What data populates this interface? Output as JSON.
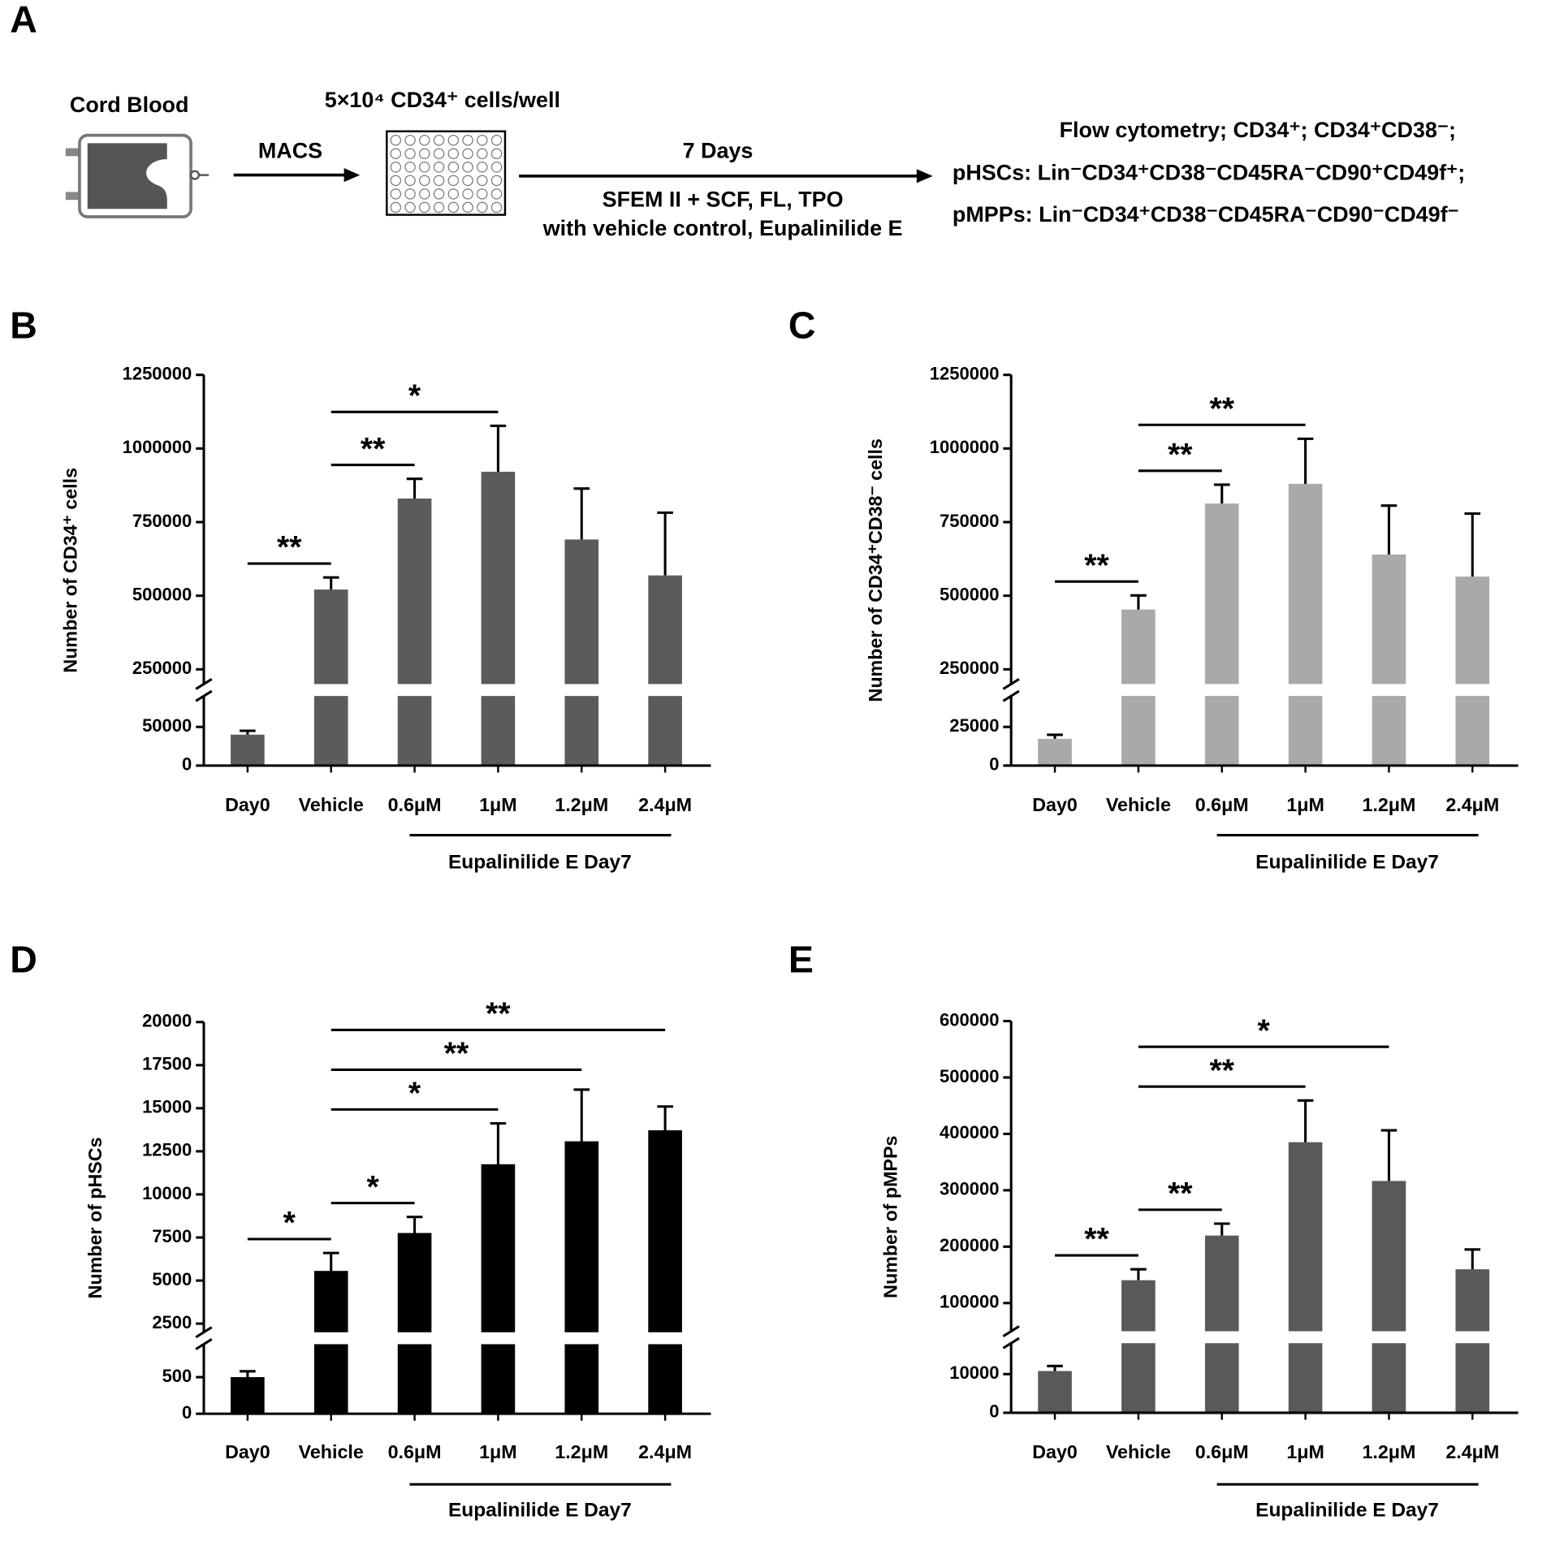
{
  "diagram": {
    "panel": "A",
    "source": "Cord Blood",
    "cells": "5×10⁴ CD34⁺ cells/well",
    "step1": "MACS",
    "step2": "7 Days",
    "medium": "SFEM II + SCF, FL, TPO",
    "treatment": "with vehicle control, Eupalinilide E",
    "readout": [
      "Flow cytometry; CD34⁺; CD34⁺CD38⁻;",
      "pHSCs: Lin⁻CD34⁺CD38⁻CD45RA⁻CD90⁺CD49f⁺;",
      "pMPPs: Lin⁻CD34⁺CD38⁻CD45RA⁻CD90⁻CD49f⁻"
    ]
  },
  "chart_data": [
    {
      "panel": "B",
      "type": "bar",
      "y_label": "Number of CD34⁺ cells",
      "categories": [
        "Day0",
        "Vehicle",
        "0.6μM",
        "1μM",
        "1.2μM",
        "2.4μM"
      ],
      "values": [
        40000,
        521000,
        830000,
        921000,
        691000,
        569000
      ],
      "errors": [
        5000,
        41000,
        67000,
        156000,
        173000,
        213000
      ],
      "color": "#5b5b5b",
      "ylim": [
        0,
        1250000
      ],
      "ybreak": [
        90000,
        200000
      ],
      "yticks": [
        0,
        50000,
        250000,
        500000,
        750000,
        1000000,
        1250000
      ],
      "comparisons": [
        {
          "from": "Day0",
          "to": "Vehicle",
          "label": "**"
        },
        {
          "from": "Vehicle",
          "to": "0.6μM",
          "label": "**"
        },
        {
          "from": "Vehicle",
          "to": "1μM",
          "label": "*"
        }
      ],
      "group": {
        "label": "Eupalinilide E Day7",
        "from": "0.6μM",
        "to": "2.4μM"
      }
    },
    {
      "panel": "C",
      "type": "bar",
      "y_label": "Number of CD34⁺CD38⁻ cells",
      "categories": [
        "Day0",
        "Vehicle",
        "0.6μM",
        "1μM",
        "1.2μM",
        "2.4μM"
      ],
      "values": [
        17300,
        453000,
        813000,
        880000,
        640000,
        565000
      ],
      "errors": [
        2600,
        48000,
        64000,
        153000,
        166000,
        214000
      ],
      "color": "#a9a9a9",
      "ylim": [
        0,
        1250000
      ],
      "ybreak": [
        45000,
        200000
      ],
      "yticks": [
        0,
        25000,
        250000,
        500000,
        750000,
        1000000,
        1250000
      ],
      "comparisons": [
        {
          "from": "Day0",
          "to": "Vehicle",
          "label": "**"
        },
        {
          "from": "Vehicle",
          "to": "0.6μM",
          "label": "**"
        },
        {
          "from": "Vehicle",
          "to": "1μM",
          "label": "**"
        }
      ],
      "group": {
        "label": "Eupalinilide E Day7",
        "from": "0.6μM",
        "to": "2.4μM"
      }
    },
    {
      "panel": "D",
      "type": "bar",
      "y_label": "Number of pHSCs",
      "categories": [
        "Day0",
        "Vehicle",
        "0.6μM",
        "1μM",
        "1.2μM",
        "2.4μM"
      ],
      "values": [
        500,
        5560,
        7760,
        11750,
        13080,
        13720
      ],
      "errors": [
        80,
        1040,
        930,
        2370,
        3000,
        1380
      ],
      "color": "#000000",
      "ylim": [
        0,
        20000
      ],
      "ybreak": [
        950,
        2000
      ],
      "yticks": [
        0,
        500,
        2500,
        5000,
        7500,
        10000,
        12500,
        15000,
        17500,
        20000
      ],
      "comparisons": [
        {
          "from": "Day0",
          "to": "Vehicle",
          "label": "*"
        },
        {
          "from": "Vehicle",
          "to": "0.6μM",
          "label": "*"
        },
        {
          "from": "Vehicle",
          "to": "1μM",
          "label": "*"
        },
        {
          "from": "Vehicle",
          "to": "1.2μM",
          "label": "**"
        },
        {
          "from": "Vehicle",
          "to": "2.4μM",
          "label": "**"
        }
      ],
      "group": {
        "label": "Eupalinilide E Day7",
        "from": "0.6μM",
        "to": "2.4μM"
      }
    },
    {
      "panel": "E",
      "type": "bar",
      "y_label": "Number of pMPPs",
      "categories": [
        "Day0",
        "Vehicle",
        "0.6μM",
        "1μM",
        "1.2μM",
        "2.4μM"
      ],
      "values": [
        10800,
        140500,
        219700,
        385200,
        316500,
        159900
      ],
      "errors": [
        1300,
        19400,
        21100,
        74000,
        89800,
        35100
      ],
      "color": "#595959",
      "ylim": [
        0,
        600000
      ],
      "ybreak": [
        18000,
        50000
      ],
      "yticks": [
        0,
        10000,
        100000,
        200000,
        300000,
        400000,
        500000,
        600000
      ],
      "comparisons": [
        {
          "from": "Day0",
          "to": "Vehicle",
          "label": "**"
        },
        {
          "from": "Vehicle",
          "to": "0.6μM",
          "label": "**"
        },
        {
          "from": "Vehicle",
          "to": "1μM",
          "label": "**"
        },
        {
          "from": "Vehicle",
          "to": "1.2μM",
          "label": "*"
        }
      ],
      "group": {
        "label": "Eupalinilide E Day7",
        "from": "0.6μM",
        "to": "2.4μM"
      }
    }
  ]
}
